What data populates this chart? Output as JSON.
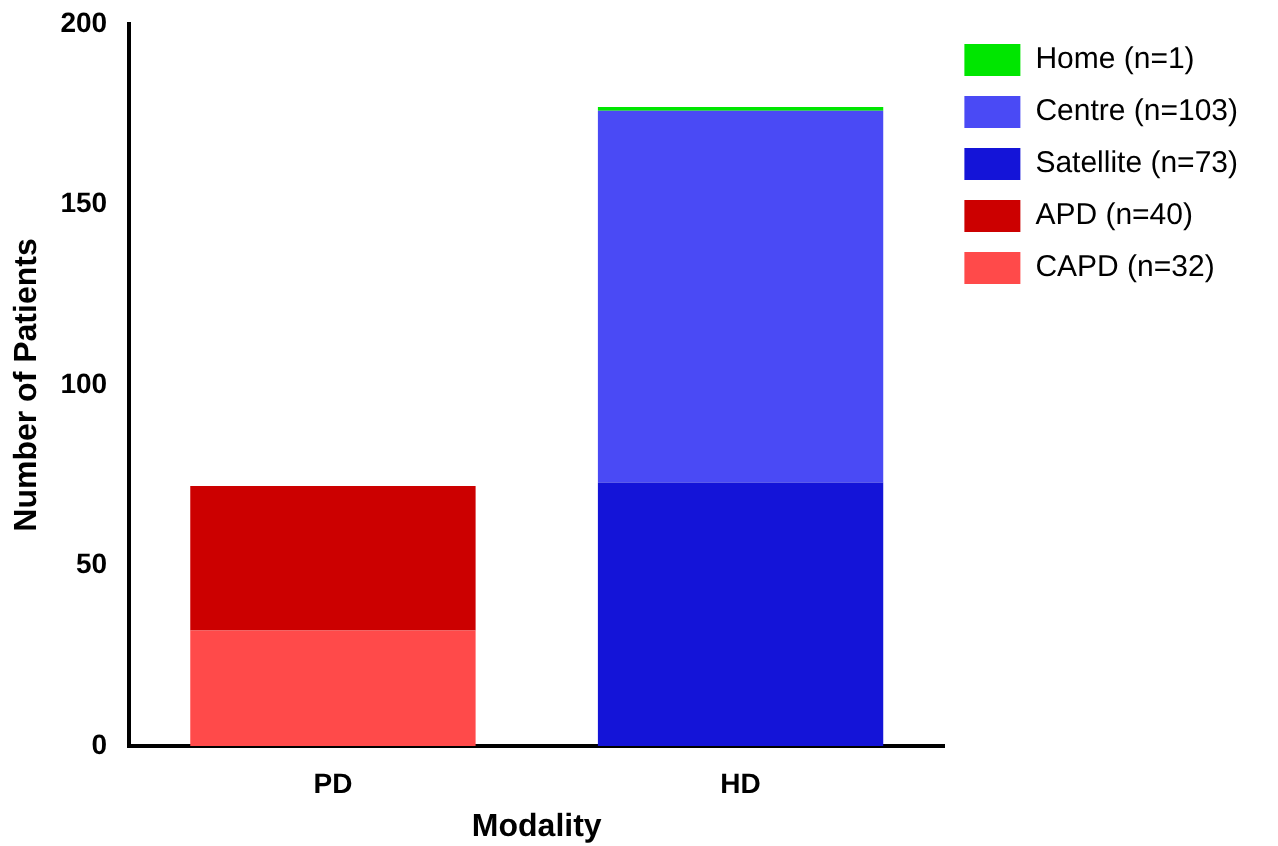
{
  "chart_data": {
    "type": "bar",
    "stacked": true,
    "xlabel": "Modality",
    "ylabel": "Number of Patients",
    "categories": [
      "PD",
      "HD"
    ],
    "series": [
      {
        "name": "CAPD (n=32)",
        "color": "#ff4a4a",
        "values": [
          32,
          null
        ]
      },
      {
        "name": "APD (n=40)",
        "color": "#cc0000",
        "values": [
          40,
          null
        ]
      },
      {
        "name": "Satellite (n=73)",
        "color": "#1414d8",
        "values": [
          null,
          73
        ]
      },
      {
        "name": "Centre (n=103)",
        "color": "#4a4af5",
        "values": [
          null,
          103
        ]
      },
      {
        "name": "Home (n=1)",
        "color": "#00e600",
        "values": [
          null,
          1
        ]
      }
    ],
    "ylim": [
      0,
      200
    ],
    "yticks": [
      0,
      50,
      100,
      150,
      200
    ],
    "grid": false,
    "legend": "top right"
  }
}
